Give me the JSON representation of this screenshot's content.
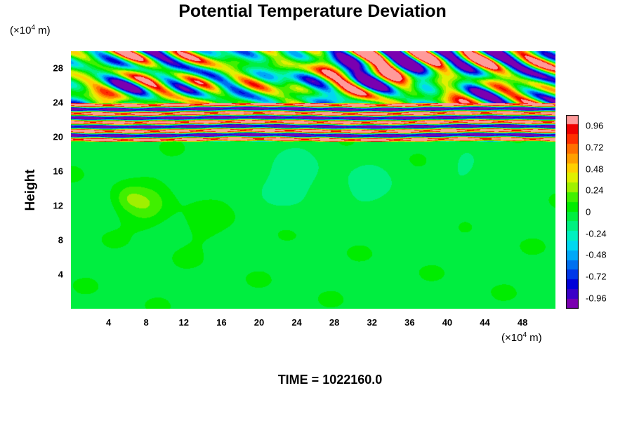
{
  "chart_data": {
    "type": "heatmap",
    "title": "Potential Temperature Deviation",
    "ylabel": "Height",
    "x_unit": {
      "prefix": "(×10",
      "exp": "4",
      "suffix": " m)"
    },
    "y_unit": {
      "prefix": "(×10",
      "exp": "4",
      "suffix": " m)"
    },
    "xlim": [
      0,
      51.5
    ],
    "ylim": [
      0,
      30
    ],
    "x_ticks": [
      "4",
      "8",
      "12",
      "16",
      "20",
      "24",
      "28",
      "32",
      "36",
      "40",
      "44",
      "48"
    ],
    "y_ticks": [
      "4",
      "8",
      "12",
      "16",
      "20",
      "24",
      "28"
    ],
    "colorbar": {
      "range": [
        -1.08,
        1.08
      ],
      "tick_labels": [
        "0.96",
        "0.72",
        "0.48",
        "0.24",
        "0",
        "-0.24",
        "-0.48",
        "-0.72",
        "-0.96"
      ],
      "colors": [
        "#7a00b0",
        "#3a00c8",
        "#0000d8",
        "#0038e8",
        "#0070f0",
        "#00a8f8",
        "#00d8f0",
        "#00f0c0",
        "#00f080",
        "#00ee40",
        "#00ec00",
        "#40f000",
        "#a0f000",
        "#e0f000",
        "#ffd000",
        "#ffa000",
        "#ff7000",
        "#ff3000",
        "#f00000",
        "#ff9a9a"
      ]
    },
    "annotation": "TIME = 1022160.0",
    "grid": false
  },
  "colors": {
    "background": "#ffffff",
    "base_field": "#00ec00"
  }
}
